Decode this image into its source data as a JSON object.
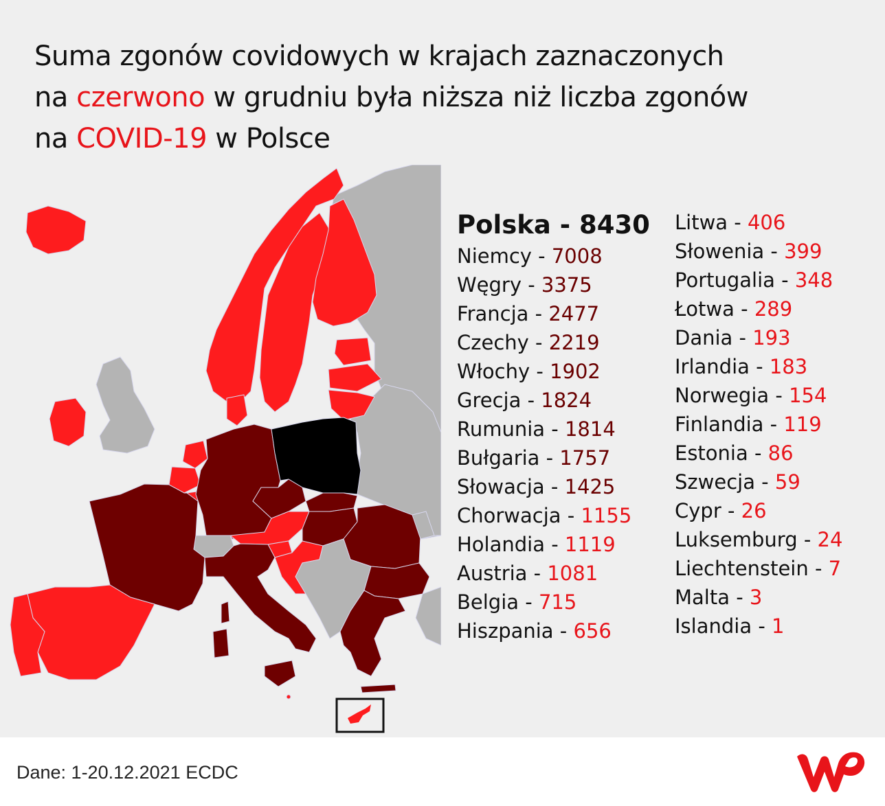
{
  "title": {
    "line1": "Suma zgonów covidowych w krajach zaznaczonych",
    "line2_pre": "na ",
    "line2_red": "czerwono",
    "line2_post": " w grudniu była niższa niż liczba zgonów",
    "line3_pre": "na ",
    "line3_red": "COVID-19",
    "line3_post": " w Polsce"
  },
  "colors": {
    "background": "#efefef",
    "red_countries": "#fe1c1e",
    "dark_countries": "#6e0000",
    "poland": "#000000",
    "other_countries": "#b4b4b4",
    "accent_red": "#e8141a",
    "logo": "#e8141a"
  },
  "legend_head": {
    "country": "Polska",
    "value": "8430"
  },
  "left_list": [
    {
      "country": "Niemcy",
      "value": "7008",
      "group": "dark"
    },
    {
      "country": "Węgry",
      "value": "3375",
      "group": "dark"
    },
    {
      "country": "Francja",
      "value": "2477",
      "group": "dark"
    },
    {
      "country": "Czechy",
      "value": "2219",
      "group": "dark"
    },
    {
      "country": "Włochy",
      "value": "1902",
      "group": "dark"
    },
    {
      "country": "Grecja",
      "value": "1824",
      "group": "dark"
    },
    {
      "country": "Rumunia",
      "value": "1814",
      "group": "dark"
    },
    {
      "country": "Bułgaria",
      "value": "1757",
      "group": "dark"
    },
    {
      "country": "Słowacja",
      "value": "1425",
      "group": "dark"
    },
    {
      "country": "Chorwacja",
      "value": "1155",
      "group": "red"
    },
    {
      "country": "Holandia",
      "value": "1119",
      "group": "red"
    },
    {
      "country": "Austria",
      "value": "1081",
      "group": "red"
    },
    {
      "country": "Belgia",
      "value": "715",
      "group": "red"
    },
    {
      "country": "Hiszpania",
      "value": "656",
      "group": "red"
    }
  ],
  "right_list": [
    {
      "country": "Litwa",
      "value": "406",
      "group": "red"
    },
    {
      "country": "Słowenia",
      "value": "399",
      "group": "red"
    },
    {
      "country": "Portugalia",
      "value": "348",
      "group": "red"
    },
    {
      "country": "Łotwa",
      "value": "289",
      "group": "red"
    },
    {
      "country": "Dania",
      "value": "193",
      "group": "red"
    },
    {
      "country": "Irlandia",
      "value": "183",
      "group": "red"
    },
    {
      "country": "Norwegia",
      "value": "154",
      "group": "red"
    },
    {
      "country": "Finlandia",
      "value": "119",
      "group": "red"
    },
    {
      "country": "Estonia",
      "value": "86",
      "group": "red"
    },
    {
      "country": "Szwecja",
      "value": "59",
      "group": "red"
    },
    {
      "country": "Cypr",
      "value": "26",
      "group": "red"
    },
    {
      "country": "Luksemburg",
      "value": "24",
      "group": "red"
    },
    {
      "country": "Liechtenstein",
      "value": "7",
      "group": "red"
    },
    {
      "country": "Malta",
      "value": "3",
      "group": "red"
    },
    {
      "country": "Islandia",
      "value": "1",
      "group": "red"
    }
  ],
  "separator": " - ",
  "source": "Dane: 1-20.12.2021 ECDC",
  "logo_icon": "wp-logo-icon"
}
